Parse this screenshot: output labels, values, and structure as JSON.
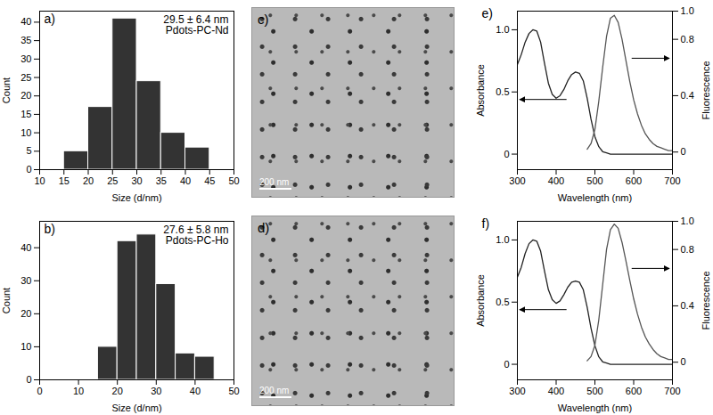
{
  "chart_data": [
    {
      "type": "histogram",
      "panel": "a)",
      "bins": [
        15,
        20,
        25,
        30,
        35,
        40,
        45
      ],
      "counts": [
        5,
        17,
        41,
        24,
        10,
        6
      ],
      "color": "#333333",
      "xlabel": "Size (d/nm)",
      "ylabel": "Count",
      "xlim": [
        10,
        50
      ],
      "xticks": [
        10,
        15,
        20,
        25,
        30,
        35,
        40,
        45,
        50
      ],
      "ylim": [
        0,
        43
      ],
      "yticks": [
        0,
        5,
        10,
        15,
        20,
        25,
        30,
        35,
        40
      ],
      "annotations": [
        "29.5 ± 6.4 nm",
        "Pdots-PC-Nd"
      ]
    },
    {
      "type": "histogram",
      "panel": "b)",
      "bins": [
        15,
        20,
        25,
        30,
        35,
        40,
        45
      ],
      "counts": [
        10,
        42,
        44,
        29,
        8,
        7
      ],
      "color": "#333333",
      "xlabel": "Size (d/nm)",
      "ylabel": "Count",
      "xlim": [
        0,
        50
      ],
      "xticks": [
        0,
        10,
        20,
        30,
        40,
        50
      ],
      "ylim": [
        0,
        48
      ],
      "yticks": [
        0,
        10,
        20,
        30,
        40
      ],
      "annotations": [
        "27.6 ± 5.8 nm",
        "Pdots-PC-Ho"
      ]
    },
    {
      "type": "image",
      "panel": "c)",
      "annotations": [
        "200 nm"
      ]
    },
    {
      "type": "image",
      "panel": "d)",
      "annotations": [
        "200 nm"
      ]
    },
    {
      "type": "line",
      "panel": "e)",
      "xlabel": "Wavelength (nm)",
      "x": [
        300,
        310,
        320,
        330,
        340,
        350,
        360,
        370,
        380,
        390,
        400,
        410,
        420,
        430,
        440,
        450,
        460,
        470,
        480,
        490,
        500,
        510,
        520,
        530,
        540,
        550,
        560,
        570,
        580,
        590,
        600,
        610,
        620,
        630,
        640,
        650,
        660,
        670,
        680,
        690,
        700
      ],
      "series": [
        {
          "name": "Absorbance",
          "color": "#222222",
          "values": [
            0.72,
            0.8,
            0.9,
            0.97,
            1.0,
            0.99,
            0.9,
            0.73,
            0.57,
            0.48,
            0.45,
            0.47,
            0.52,
            0.59,
            0.64,
            0.66,
            0.65,
            0.59,
            0.45,
            0.28,
            0.14,
            0.06,
            0.02,
            0.01,
            0,
            0,
            0,
            0,
            0,
            0,
            0,
            0,
            0,
            0,
            0,
            0,
            0,
            0,
            0,
            0,
            0
          ]
        },
        {
          "name": "Fluorescence",
          "color": "#555555",
          "axis": "y2",
          "values": [
            null,
            null,
            null,
            null,
            null,
            null,
            null,
            null,
            null,
            null,
            null,
            null,
            null,
            null,
            null,
            null,
            null,
            null,
            0.02,
            0.06,
            0.16,
            0.36,
            0.6,
            0.82,
            0.95,
            0.97,
            0.92,
            0.8,
            0.65,
            0.5,
            0.37,
            0.27,
            0.19,
            0.13,
            0.09,
            0.06,
            0.04,
            0.03,
            0.02,
            0.01,
            0.01
          ]
        }
      ],
      "xlim": [
        300,
        700
      ],
      "xticks": [
        300,
        400,
        500,
        600,
        700
      ],
      "ylim": [
        -0.125,
        1.15
      ],
      "yticks": [
        0,
        0.5,
        {
          "value": 1,
          "label": "1.0"
        }
      ],
      "y2lim": [
        -0.125,
        1.0
      ],
      "y2ticks": [
        0,
        0.4,
        0.8,
        {
          "value": 1,
          "label": "1.0"
        }
      ]
    },
    {
      "type": "line",
      "panel": "f)",
      "xlabel": "Wavelength (nm)",
      "x": [
        300,
        310,
        320,
        330,
        340,
        350,
        360,
        370,
        380,
        390,
        400,
        410,
        420,
        430,
        440,
        450,
        460,
        470,
        480,
        490,
        500,
        510,
        520,
        530,
        540,
        550,
        560,
        570,
        580,
        590,
        600,
        610,
        620,
        630,
        640,
        650,
        660,
        670,
        680,
        690,
        700
      ],
      "series": [
        {
          "name": "Absorbance",
          "color": "#222222",
          "values": [
            0.7,
            0.78,
            0.89,
            0.97,
            1.0,
            0.99,
            0.91,
            0.75,
            0.6,
            0.52,
            0.49,
            0.51,
            0.56,
            0.62,
            0.66,
            0.67,
            0.66,
            0.6,
            0.46,
            0.29,
            0.15,
            0.06,
            0.02,
            0.01,
            0,
            0,
            0,
            0,
            0,
            0,
            0,
            0,
            0,
            0,
            0,
            0,
            0,
            0,
            0,
            0,
            0
          ]
        },
        {
          "name": "Fluorescence",
          "color": "#555555",
          "axis": "y2",
          "values": [
            null,
            null,
            null,
            null,
            null,
            null,
            null,
            null,
            null,
            null,
            null,
            null,
            null,
            null,
            null,
            null,
            null,
            null,
            0.01,
            0.04,
            0.12,
            0.3,
            0.55,
            0.8,
            0.94,
            0.98,
            0.95,
            0.85,
            0.72,
            0.58,
            0.45,
            0.34,
            0.25,
            0.18,
            0.13,
            0.09,
            0.06,
            0.04,
            0.03,
            0.02,
            0.02
          ]
        }
      ],
      "xlim": [
        300,
        700
      ],
      "xticks": [
        300,
        400,
        500,
        600,
        700
      ],
      "ylim": [
        -0.125,
        1.15
      ],
      "yticks": [
        0,
        0.5,
        {
          "value": 1,
          "label": "1.0"
        }
      ],
      "y2lim": [
        -0.125,
        1.0
      ],
      "y2ticks": [
        0,
        0.4,
        0.8,
        {
          "value": 1,
          "label": "1.0"
        }
      ]
    }
  ]
}
